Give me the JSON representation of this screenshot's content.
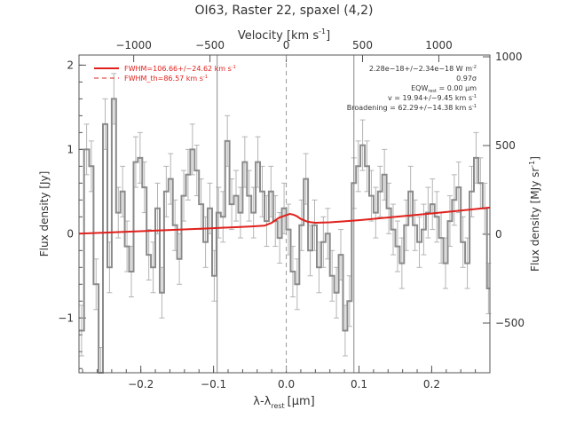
{
  "chart_data": {
    "type": "line",
    "title": "OI63, Raster 22, spaxel (4,2)",
    "xlabel": "λ-λ",
    "xlabel_sub": "rest",
    "xlabel_unit": "[μm]",
    "ylabel": "Flux density [Jy]",
    "y2label": "Flux density [MJy sr",
    "y2label_sup": "-1",
    "y2label_end": "]",
    "top_axis_label": "Velocity [km s",
    "top_axis_label_sup": "-1",
    "top_axis_label_end": "]",
    "xlim": [
      -0.285,
      0.28
    ],
    "ylim": [
      -1.65,
      2.12
    ],
    "y2lim": [
      -780,
      1010
    ],
    "x_ticks": [
      -0.2,
      -0.1,
      0.0,
      0.1,
      0.2
    ],
    "x_tick_labels": [
      "−0.2",
      "−0.1",
      "0.0",
      "0.1",
      "0.2"
    ],
    "y_ticks": [
      -1,
      0,
      1,
      2
    ],
    "y_tick_labels": [
      "−1",
      "0",
      "1",
      "2"
    ],
    "y2_ticks": [
      -500,
      0,
      500,
      1000
    ],
    "y2_tick_labels": [
      "−500",
      "0",
      "500",
      "1000"
    ],
    "top_ticks_x": [
      -0.2098,
      -0.1049,
      0.0,
      0.1049,
      0.2098
    ],
    "top_tick_labels": [
      "−1000",
      "−500",
      "0",
      "500",
      "1000"
    ],
    "vlines_solid_x": [
      -0.095,
      0.093
    ],
    "vline_dashed_x": 0.0,
    "grid": false,
    "legend": [
      {
        "label": "FWHM=106.66+/−24.62 km s",
        "sup": "-1",
        "style": "solid"
      },
      {
        "label": "FWHM_th=86.57 km s",
        "sup": "-1",
        "style": "dashed"
      }
    ],
    "legend_position": "top-left",
    "annotations": [
      "2.28e−18+/−2.34e−18 W m",
      "0.97σ",
      "EQW",
      "v = 19.94+/−9.45 km s",
      "Broadening = 62.29+/−14.38 km s"
    ],
    "annotation_sups": [
      "-2",
      "",
      "",
      "-1",
      "-1"
    ],
    "annotation_eqw_sub": "rest",
    "annotation_eqw_end": " = 0.00 μm",
    "series": [
      {
        "name": "Observed flux",
        "step": true,
        "x": [
          -0.285,
          -0.278,
          -0.271,
          -0.265,
          -0.258,
          -0.252,
          -0.246,
          -0.24,
          -0.234,
          -0.228,
          -0.222,
          -0.216,
          -0.21,
          -0.204,
          -0.198,
          -0.192,
          -0.186,
          -0.18,
          -0.174,
          -0.168,
          -0.162,
          -0.156,
          -0.15,
          -0.144,
          -0.138,
          -0.132,
          -0.126,
          -0.12,
          -0.114,
          -0.108,
          -0.102,
          -0.096,
          -0.09,
          -0.084,
          -0.078,
          -0.072,
          -0.066,
          -0.06,
          -0.054,
          -0.048,
          -0.042,
          -0.036,
          -0.03,
          -0.024,
          -0.018,
          -0.012,
          -0.006,
          0.0,
          0.006,
          0.012,
          0.018,
          0.024,
          0.03,
          0.036,
          0.042,
          0.048,
          0.054,
          0.06,
          0.066,
          0.072,
          0.078,
          0.084,
          0.09,
          0.096,
          0.102,
          0.108,
          0.114,
          0.12,
          0.126,
          0.132,
          0.138,
          0.144,
          0.15,
          0.156,
          0.162,
          0.168,
          0.174,
          0.18,
          0.186,
          0.192,
          0.198,
          0.204,
          0.21,
          0.216,
          0.222,
          0.228,
          0.234,
          0.24,
          0.246,
          0.252,
          0.258,
          0.264,
          0.27,
          0.276
        ],
        "y": [
          -1.15,
          1.0,
          0.8,
          -0.6,
          -1.65,
          1.3,
          -0.4,
          1.6,
          0.25,
          0.5,
          -0.15,
          -0.45,
          0.85,
          0.9,
          0.55,
          -0.25,
          -0.4,
          0.3,
          -0.7,
          0.5,
          0.65,
          0.1,
          -0.3,
          0.45,
          0.7,
          1.0,
          0.75,
          0.35,
          -0.1,
          0.3,
          -0.5,
          0.25,
          0.2,
          1.1,
          0.35,
          0.45,
          0.25,
          0.85,
          0.45,
          0.25,
          0.85,
          0.5,
          0.15,
          0.5,
          0.15,
          -0.05,
          0.3,
          0.05,
          -0.45,
          -0.6,
          0.1,
          0.65,
          -0.2,
          0.1,
          -0.4,
          -0.1,
          0.0,
          -0.5,
          -0.7,
          -0.25,
          -1.15,
          -0.8,
          0.6,
          0.8,
          1.05,
          0.8,
          0.45,
          0.25,
          0.5,
          0.7,
          0.3,
          0.05,
          -0.15,
          -0.35,
          0.1,
          0.5,
          0.1,
          -0.1,
          0.05,
          0.25,
          0.35,
          0.2,
          -0.05,
          -0.35,
          0.15,
          0.4,
          0.55,
          -0.1,
          -0.35,
          0.5,
          0.9,
          0.6,
          0.3,
          -0.65
        ],
        "err": 0.3
      },
      {
        "name": "Gaussian fit",
        "x": [
          -0.285,
          -0.2,
          -0.1,
          -0.05,
          -0.03,
          -0.02,
          -0.01,
          0.0,
          0.005,
          0.01,
          0.015,
          0.02,
          0.03,
          0.04,
          0.06,
          0.1,
          0.2,
          0.28
        ],
        "y": [
          0.0,
          0.03,
          0.065,
          0.085,
          0.095,
          0.13,
          0.19,
          0.22,
          0.235,
          0.225,
          0.205,
          0.175,
          0.14,
          0.13,
          0.135,
          0.16,
          0.24,
          0.31
        ]
      }
    ]
  }
}
